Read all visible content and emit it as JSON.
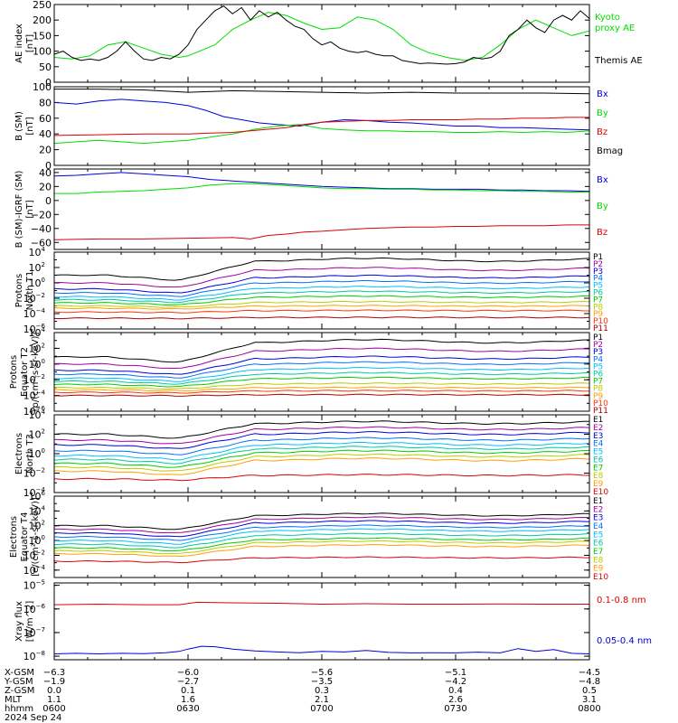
{
  "chart_data": [
    {
      "type": "line",
      "panel": "ae",
      "ylabel": [
        "AE index",
        "[nT]"
      ],
      "ylim": [
        0,
        250
      ],
      "yticks": [
        "0",
        "50",
        "100",
        "150",
        "200",
        "250"
      ],
      "series": [
        {
          "name": "Kyoto proxy AE",
          "label_lines": [
            "Kyoto",
            "proxy AE"
          ],
          "color": "#00dd00",
          "x": [
            0,
            4,
            8,
            12,
            16,
            20,
            24,
            28,
            30,
            36,
            40,
            44,
            48,
            52,
            56,
            60,
            64,
            68,
            72,
            76,
            80,
            84,
            88,
            92,
            96,
            100,
            104,
            108,
            112,
            116,
            120
          ],
          "y": [
            80,
            75,
            85,
            120,
            130,
            110,
            90,
            80,
            85,
            120,
            170,
            200,
            225,
            215,
            190,
            170,
            175,
            210,
            200,
            170,
            120,
            95,
            80,
            70,
            80,
            120,
            170,
            200,
            175,
            150,
            165
          ]
        },
        {
          "name": "Themis AE",
          "label_lines": [
            "Themis AE"
          ],
          "color": "#000000",
          "x": [
            0,
            2,
            4,
            6,
            8,
            10,
            12,
            14,
            16,
            18,
            20,
            22,
            24,
            26,
            28,
            30,
            32,
            34,
            36,
            38,
            40,
            42,
            44,
            46,
            48,
            50,
            52,
            54,
            56,
            58,
            60,
            62,
            64,
            66,
            68,
            70,
            72,
            74,
            76,
            78,
            80,
            82,
            84,
            86,
            88,
            90,
            92,
            94,
            96,
            98,
            100,
            102,
            104,
            106,
            108,
            110,
            112,
            114,
            116,
            118,
            120
          ],
          "y": [
            90,
            100,
            80,
            70,
            75,
            70,
            80,
            100,
            130,
            100,
            75,
            70,
            80,
            75,
            90,
            120,
            170,
            200,
            230,
            245,
            220,
            240,
            200,
            230,
            210,
            225,
            200,
            180,
            170,
            140,
            120,
            130,
            110,
            100,
            95,
            100,
            90,
            85,
            85,
            70,
            65,
            60,
            62,
            60,
            58,
            60,
            65,
            80,
            75,
            80,
            100,
            150,
            170,
            200,
            175,
            160,
            200,
            215,
            200,
            230,
            205
          ]
        }
      ]
    },
    {
      "type": "line",
      "panel": "b_sm",
      "ylabel": [
        "B (SM)",
        "[nT]"
      ],
      "ylim": [
        0,
        100
      ],
      "yticks": [
        "0",
        "20",
        "40",
        "60",
        "80",
        "100"
      ],
      "series": [
        {
          "name": "Bx",
          "color": "#0000dd",
          "x": [
            0,
            5,
            10,
            15,
            20,
            25,
            30,
            34,
            38,
            42,
            46,
            50,
            55,
            60,
            65,
            70,
            75,
            80,
            85,
            90,
            95,
            100,
            105,
            110,
            115,
            120
          ],
          "y": [
            80,
            78,
            82,
            84,
            82,
            80,
            76,
            70,
            62,
            58,
            54,
            52,
            50,
            55,
            58,
            57,
            55,
            54,
            52,
            50,
            50,
            48,
            48,
            47,
            46,
            45
          ]
        },
        {
          "name": "By",
          "color": "#00dd00",
          "x": [
            0,
            5,
            10,
            15,
            20,
            25,
            30,
            35,
            40,
            45,
            50,
            55,
            60,
            65,
            70,
            75,
            80,
            85,
            90,
            95,
            100,
            105,
            110,
            115,
            120
          ],
          "y": [
            28,
            30,
            32,
            30,
            28,
            30,
            32,
            36,
            40,
            46,
            50,
            52,
            47,
            45,
            44,
            44,
            43,
            43,
            42,
            42,
            43,
            42,
            43,
            42,
            44
          ]
        },
        {
          "name": "Bz",
          "color": "#dd0000",
          "x": [
            0,
            10,
            20,
            30,
            35,
            40,
            44,
            48,
            52,
            56,
            60,
            65,
            70,
            75,
            80,
            85,
            90,
            95,
            100,
            105,
            110,
            115,
            120
          ],
          "y": [
            38,
            39,
            40,
            40,
            41,
            42,
            44,
            46,
            48,
            52,
            55,
            56,
            57,
            57,
            58,
            58,
            58,
            59,
            59,
            60,
            60,
            61,
            61
          ]
        },
        {
          "name": "Bmag",
          "color": "#000000",
          "x": [
            0,
            10,
            20,
            30,
            40,
            50,
            60,
            70,
            80,
            90,
            100,
            110,
            120
          ],
          "y": [
            97,
            97,
            96,
            93,
            95,
            94,
            93,
            92,
            93,
            92,
            92,
            92,
            91
          ]
        }
      ]
    },
    {
      "type": "line",
      "panel": "b_igrf",
      "ylabel": [
        "B (SM)-IGRF (SM)",
        "[nT]"
      ],
      "ylim": [
        -70,
        45
      ],
      "yticks": [
        "−60",
        "−40",
        "−20",
        "0",
        "20",
        "40"
      ],
      "series": [
        {
          "name": "Bx",
          "color": "#0000dd",
          "x": [
            0,
            5,
            10,
            15,
            20,
            25,
            30,
            35,
            40,
            45,
            50,
            55,
            60,
            65,
            70,
            75,
            80,
            85,
            90,
            95,
            100,
            105,
            110,
            115,
            120
          ],
          "y": [
            35,
            36,
            38,
            40,
            38,
            36,
            34,
            30,
            28,
            26,
            24,
            22,
            20,
            19,
            18,
            17,
            17,
            16,
            16,
            16,
            15,
            15,
            14,
            14,
            13
          ]
        },
        {
          "name": "By",
          "color": "#00dd00",
          "x": [
            0,
            5,
            10,
            15,
            20,
            25,
            30,
            35,
            40,
            45,
            50,
            55,
            60,
            65,
            70,
            75,
            80,
            85,
            90,
            95,
            100,
            105,
            110,
            115,
            120
          ],
          "y": [
            10,
            10,
            12,
            13,
            14,
            16,
            18,
            22,
            24,
            24,
            22,
            20,
            18,
            17,
            17,
            16,
            16,
            15,
            15,
            14,
            14,
            13,
            13,
            12,
            12
          ]
        },
        {
          "name": "Bz",
          "color": "#dd0000",
          "x": [
            0,
            10,
            20,
            30,
            40,
            44,
            48,
            52,
            56,
            60,
            65,
            70,
            75,
            80,
            85,
            90,
            95,
            100,
            105,
            110,
            115,
            120
          ],
          "y": [
            -56,
            -55,
            -55,
            -54,
            -53,
            -55,
            -50,
            -48,
            -45,
            -44,
            -42,
            -40,
            -39,
            -38,
            -38,
            -37,
            -37,
            -36,
            -36,
            -36,
            -35,
            -35
          ]
        }
      ]
    },
    {
      "type": "line",
      "panel": "protons_t1",
      "ylabel": [
        "Protons",
        "North T1"
      ],
      "yscale": "log",
      "ylim": [
        -6,
        4
      ],
      "ytick_exps": [
        -6,
        -4,
        -2,
        0,
        2,
        4
      ],
      "channels": [
        "P1",
        "P2",
        "P3",
        "P4",
        "P5",
        "P6",
        "P7",
        "P8",
        "P9",
        "P10",
        "P11"
      ],
      "colors": [
        "#000000",
        "#a000a0",
        "#0000dd",
        "#0070ff",
        "#00c0ff",
        "#00c8a0",
        "#00cc00",
        "#bbcc00",
        "#ffa000",
        "#ff3300",
        "#aa0000"
      ],
      "base_log": [
        1.0,
        0.0,
        -0.8,
        -1.3,
        -1.8,
        -2.2,
        -2.6,
        -3.0,
        -3.3,
        -3.8,
        -4.6
      ],
      "rise_log": [
        2.0,
        1.8,
        1.6,
        1.4,
        1.2,
        1.0,
        0.8,
        0.5,
        0.3,
        0.2,
        0.1
      ]
    },
    {
      "type": "line",
      "panel": "protons_t2",
      "ylabel": [
        "Protons",
        "Equator T2",
        "[p/(cm²-s-sr-keV)]"
      ],
      "yscale": "log",
      "ylim": [
        -6,
        4
      ],
      "ytick_exps": [
        -6,
        -4,
        -2,
        0,
        2,
        4
      ],
      "channels": [
        "P1",
        "P2",
        "P3",
        "P4",
        "P5",
        "P6",
        "P7",
        "P8",
        "P9",
        "P10",
        "P11"
      ],
      "colors": [
        "#000000",
        "#a000a0",
        "#0000dd",
        "#0070ff",
        "#00c0ff",
        "#00c8a0",
        "#00cc00",
        "#bbcc00",
        "#ffa000",
        "#ff3300",
        "#aa0000"
      ],
      "base_log": [
        0.9,
        0.0,
        -0.8,
        -1.3,
        -1.8,
        -2.2,
        -2.6,
        -3.0,
        -3.3,
        -3.6,
        -4.0
      ],
      "rise_log": [
        2.0,
        1.8,
        1.6,
        1.4,
        1.2,
        1.0,
        0.8,
        0.5,
        0.3,
        0.2,
        0.1
      ]
    },
    {
      "type": "line",
      "panel": "electrons_t3",
      "ylabel": [
        "Electrons",
        "North T3"
      ],
      "yscale": "log",
      "ylim": [
        -4,
        4
      ],
      "ytick_exps": [
        -4,
        -2,
        0,
        2,
        4
      ],
      "channels": [
        "E1",
        "E2",
        "E3",
        "E4",
        "E5",
        "E6",
        "E7",
        "E8",
        "E9",
        "E10"
      ],
      "colors": [
        "#000000",
        "#a000a0",
        "#0000dd",
        "#0070ff",
        "#00c0ff",
        "#00c8a0",
        "#00cc00",
        "#bbcc00",
        "#ffa000",
        "#dd0000"
      ],
      "base_log": [
        2.0,
        1.4,
        0.9,
        0.3,
        -0.2,
        -0.6,
        -1.0,
        -1.4,
        -1.8,
        -2.6
      ],
      "rise_log": [
        1.2,
        1.2,
        1.2,
        1.2,
        1.2,
        1.2,
        1.2,
        1.2,
        1.2,
        0.4
      ]
    },
    {
      "type": "line",
      "panel": "electrons_t4",
      "ylabel": [
        "Electrons",
        "Equator T4",
        "[e/(cm²-s-sr-keV)]"
      ],
      "yscale": "log",
      "ylim": [
        -5,
        6
      ],
      "ytick_exps": [
        -4,
        -2,
        0,
        2,
        4,
        6
      ],
      "channels": [
        "E1",
        "E2",
        "E3",
        "E4",
        "E5",
        "E6",
        "E7",
        "E8",
        "E9",
        "E10"
      ],
      "colors": [
        "#000000",
        "#a000a0",
        "#0000dd",
        "#0070ff",
        "#00c0ff",
        "#00c8a0",
        "#00cc00",
        "#bbcc00",
        "#ffa000",
        "#dd0000"
      ],
      "base_log": [
        2.0,
        1.5,
        1.0,
        0.5,
        0.0,
        -0.5,
        -1.0,
        -1.4,
        -1.8,
        -2.8
      ],
      "rise_log": [
        1.5,
        1.5,
        1.5,
        1.4,
        1.4,
        1.3,
        1.2,
        1.2,
        1.1,
        0.5
      ]
    },
    {
      "type": "line",
      "panel": "xray",
      "ylabel": [
        "Xray flux",
        "[W/m^2]"
      ],
      "yscale": "log",
      "ylim": [
        -8.15,
        -4.9
      ],
      "ytick_exps": [
        -8,
        -7,
        -6,
        -5
      ],
      "series": [
        {
          "name": "0.1-0.8 nm",
          "color": "#dd0000",
          "x": [
            0,
            10,
            20,
            28,
            32,
            40,
            50,
            60,
            70,
            80,
            90,
            100,
            110,
            120
          ],
          "y": [
            -5.82,
            -5.8,
            -5.82,
            -5.82,
            -5.72,
            -5.74,
            -5.76,
            -5.8,
            -5.78,
            -5.8,
            -5.8,
            -5.79,
            -5.8,
            -5.8
          ]
        },
        {
          "name": "0.05-0.4 nm",
          "color": "#0000dd",
          "x": [
            0,
            5,
            10,
            15,
            20,
            25,
            28,
            30,
            33,
            36,
            40,
            45,
            50,
            55,
            60,
            65,
            70,
            75,
            80,
            85,
            90,
            95,
            100,
            104,
            108,
            112,
            116,
            120
          ],
          "y": [
            -7.9,
            -7.88,
            -7.9,
            -7.88,
            -7.89,
            -7.85,
            -7.8,
            -7.7,
            -7.58,
            -7.6,
            -7.7,
            -7.78,
            -7.82,
            -7.85,
            -7.8,
            -7.82,
            -7.76,
            -7.84,
            -7.86,
            -7.85,
            -7.86,
            -7.83,
            -7.86,
            -7.68,
            -7.8,
            -7.72,
            -7.88,
            -7.9
          ]
        }
      ]
    }
  ],
  "ephemeris": {
    "row_labels": [
      "X-GSM",
      "Y-GSM",
      "Z-GSM",
      "MLT",
      "hhmm"
    ],
    "columns": [
      [
        "−6.3",
        "−1.9",
        "0.0",
        "1.1",
        "0600"
      ],
      [
        "−6.0",
        "−2.7",
        "0.1",
        "1.6",
        "0630"
      ],
      [
        "−5.6",
        "−3.5",
        "0.3",
        "2.1",
        "0700"
      ],
      [
        "−5.1",
        "−4.2",
        "0.4",
        "2.6",
        "0730"
      ],
      [
        "−4.5",
        "−4.8",
        "0.5",
        "3.1",
        "0800"
      ]
    ],
    "date": "2024 Sep 24"
  }
}
